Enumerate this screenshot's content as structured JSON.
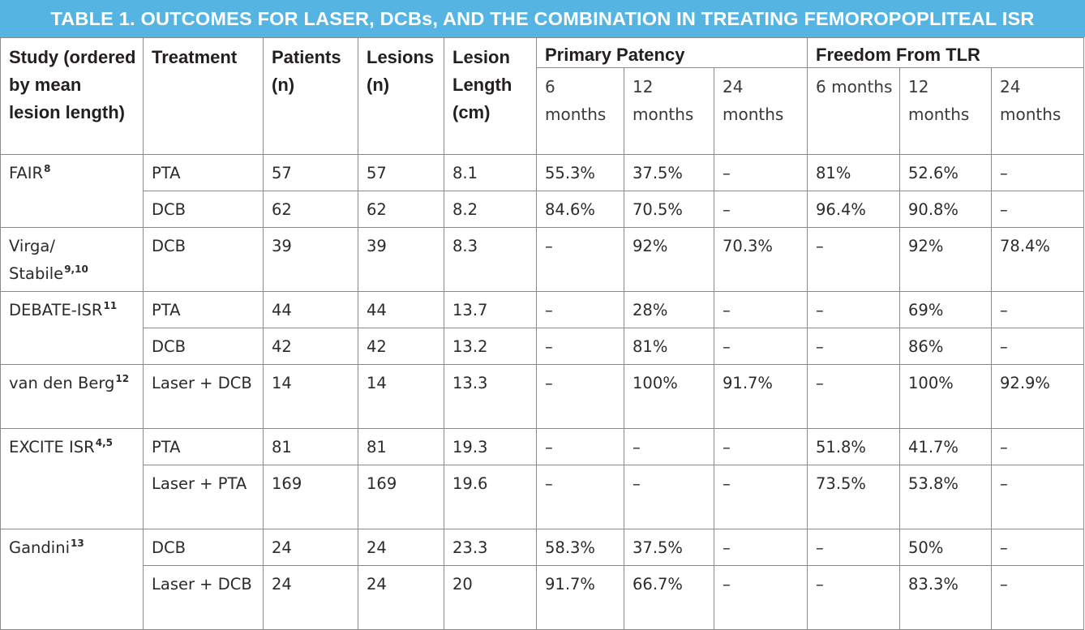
{
  "title": "TABLE 1.  OUTCOMES FOR LASER, DCBs, AND THE COMBINATION IN TREATING FEMOROPOPLITEAL ISR",
  "headers": {
    "study": "Study (ordered by mean lesion length)",
    "treatment": "Treatment",
    "patients": "Patients (n)",
    "lesions": "Lesions (n)",
    "length": "Lesion Length (cm)",
    "primary_patency": "Primary Patency",
    "freedom_tlr": "Freedom From TLR",
    "m6": "6 months",
    "m12": "12 months",
    "m24": "24 months"
  },
  "studies": [
    {
      "name": "FAIR",
      "ref": "8",
      "rows": [
        [
          "PTA",
          "57",
          "57",
          "8.1",
          "55.3%",
          "37.5%",
          "–",
          "81%",
          "52.6%",
          "–"
        ],
        [
          "DCB",
          "62",
          "62",
          "8.2",
          "84.6%",
          "70.5%",
          "–",
          "96.4%",
          "90.8%",
          "–"
        ]
      ]
    },
    {
      "name": "Virga/ Stabile",
      "ref": "9,10",
      "rows": [
        [
          "DCB",
          "39",
          "39",
          "8.3",
          "–",
          "92%",
          "70.3%",
          "–",
          "92%",
          "78.4%"
        ]
      ]
    },
    {
      "name": "DEBATE-ISR",
      "ref": "11",
      "rows": [
        [
          "PTA",
          "44",
          "44",
          "13.7",
          "–",
          "28%",
          "–",
          "–",
          "69%",
          "–"
        ],
        [
          "DCB",
          "42",
          "42",
          "13.2",
          "–",
          "81%",
          "–",
          "–",
          "86%",
          "–"
        ]
      ]
    },
    {
      "name": "van den Berg",
      "ref": "12",
      "rows": [
        [
          "Laser + DCB",
          "14",
          "14",
          "13.3",
          "–",
          "100%",
          "91.7%",
          "–",
          "100%",
          "92.9%"
        ]
      ]
    },
    {
      "name": "EXCITE ISR",
      "ref": "4,5",
      "rows": [
        [
          "PTA",
          "81",
          "81",
          "19.3",
          "–",
          "–",
          "–",
          "51.8%",
          "41.7%",
          "–"
        ],
        [
          "Laser + PTA",
          "169",
          "169",
          "19.6",
          "–",
          "–",
          "–",
          "73.5%",
          "53.8%",
          "–"
        ]
      ]
    },
    {
      "name": "Gandini",
      "ref": "13",
      "rows": [
        [
          "DCB",
          "24",
          "24",
          "23.3",
          "58.3%",
          "37.5%",
          "–",
          "–",
          "50%",
          "–"
        ],
        [
          "Laser + DCB",
          "24",
          "24",
          "20",
          "91.7%",
          "66.7%",
          "–",
          "–",
          "83.3%",
          "–"
        ]
      ]
    }
  ]
}
